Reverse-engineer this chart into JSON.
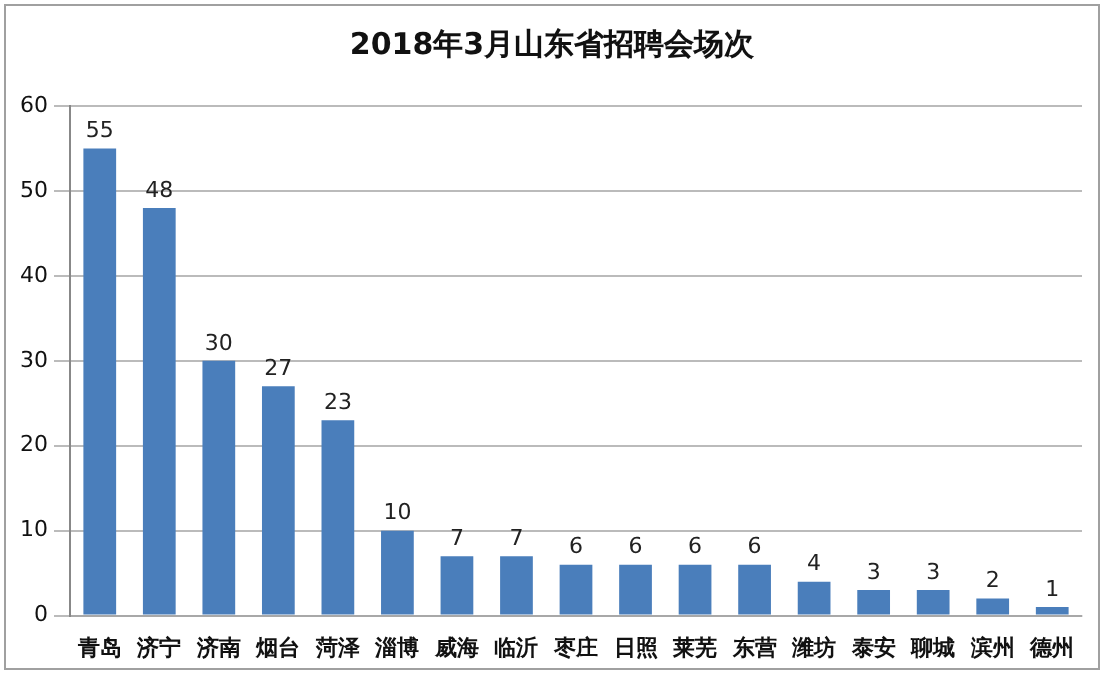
{
  "chart_data": {
    "type": "bar",
    "title": "2018年3月山东省招聘会场次",
    "categories": [
      "青岛",
      "济宁",
      "济南",
      "烟台",
      "菏泽",
      "淄博",
      "威海",
      "临沂",
      "枣庄",
      "日照",
      "莱芜",
      "东营",
      "潍坊",
      "泰安",
      "聊城",
      "滨州",
      "德州"
    ],
    "values": [
      55,
      48,
      30,
      27,
      23,
      10,
      7,
      7,
      6,
      6,
      6,
      6,
      4,
      3,
      3,
      2,
      1
    ],
    "color": "#4a7ebb",
    "ylim": [
      0,
      60
    ],
    "yticks": [
      0,
      10,
      20,
      30,
      40,
      50,
      60
    ],
    "grid": "y",
    "data_labels": true
  }
}
